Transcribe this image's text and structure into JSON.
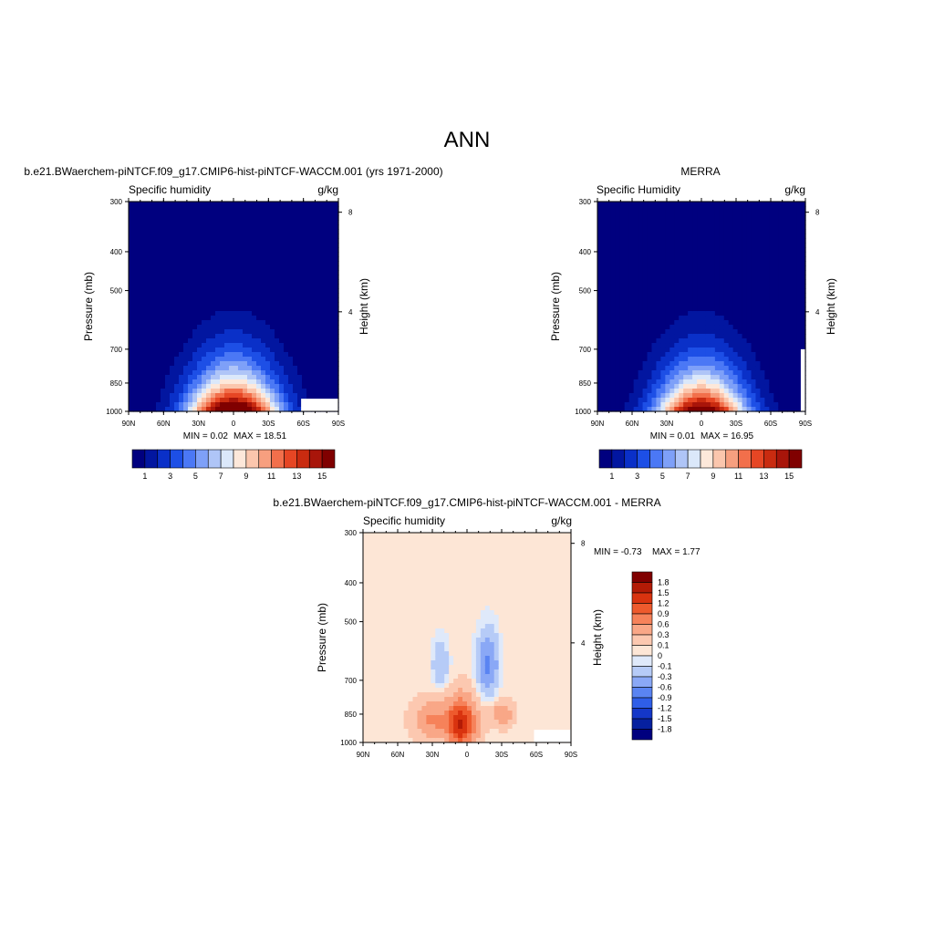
{
  "page": {
    "title": "ANN"
  },
  "chart_data": [
    {
      "type": "heatmap",
      "id": "model",
      "title": "b.e21.BWaerchem-piNTCF.f09_g17.CMIP6-hist-piNTCF-WACCM.001 (yrs 1971-2000)",
      "left_string": "Specific humidity",
      "right_string": "g/kg",
      "ylabel": "Pressure (mb)",
      "y2label": "Height (km)",
      "x_ticks": [
        "90N",
        "60N",
        "30N",
        "0",
        "30S",
        "60S",
        "90S"
      ],
      "y_ticks": [
        "300",
        "400",
        "500",
        "700",
        "850",
        "1000"
      ],
      "y2_ticks": [
        "8",
        "4"
      ],
      "x_range": [
        90,
        -90
      ],
      "y_range": [
        1000,
        300
      ],
      "y_scale": "log",
      "stats": {
        "min": "MIN =   0.02",
        "max": "MAX =  18.51"
      },
      "field": {
        "peak_lat": 0,
        "peak_value": 18.51,
        "min_value": 0.02,
        "note_shape": "max near equator at surface, decreasing poleward and upward"
      },
      "levels": [
        0,
        1,
        2,
        3,
        4,
        5,
        6,
        7,
        8,
        9,
        10,
        11,
        12,
        13,
        14,
        15,
        16
      ],
      "colorbar": {
        "orientation": "horizontal",
        "labels": [
          "1",
          "3",
          "5",
          "7",
          "9",
          "11",
          "13",
          "15"
        ],
        "colors": [
          "#00007f",
          "#0216a0",
          "#0a30c8",
          "#1d4fe6",
          "#4b78f5",
          "#7ea0f8",
          "#afc5f7",
          "#dbe8fa",
          "#fde8da",
          "#fbc6ad",
          "#f79f7f",
          "#f26f4b",
          "#e64624",
          "#c92b10",
          "#a8150a",
          "#800000"
        ]
      },
      "missing": "no data near 60S-90S below ~900 mb"
    },
    {
      "type": "heatmap",
      "id": "obs",
      "title": "MERRA",
      "left_string": "Specific Humidity",
      "right_string": "g/kg",
      "ylabel": "Pressure (mb)",
      "y2label": "Height (km)",
      "x_ticks": [
        "90N",
        "60N",
        "30N",
        "0",
        "30S",
        "60S",
        "90S"
      ],
      "y_ticks": [
        "300",
        "400",
        "500",
        "700",
        "850",
        "1000"
      ],
      "y2_ticks": [
        "8",
        "4"
      ],
      "x_range": [
        90,
        -90
      ],
      "y_range": [
        1000,
        300
      ],
      "y_scale": "log",
      "stats": {
        "min": "MIN =   0.01",
        "max": "MAX =  16.95"
      },
      "field": {
        "peak_lat": 0,
        "peak_value": 16.95,
        "min_value": 0.01
      },
      "levels": [
        0,
        1,
        2,
        3,
        4,
        5,
        6,
        7,
        8,
        9,
        10,
        11,
        12,
        13,
        14,
        15,
        16
      ],
      "colorbar": {
        "orientation": "horizontal",
        "labels": [
          "1",
          "3",
          "5",
          "7",
          "9",
          "11",
          "13",
          "15"
        ],
        "colors": [
          "#00007f",
          "#0216a0",
          "#0a30c8",
          "#1d4fe6",
          "#4b78f5",
          "#7ea0f8",
          "#afc5f7",
          "#dbe8fa",
          "#fde8da",
          "#fbc6ad",
          "#f79f7f",
          "#f26f4b",
          "#e64624",
          "#c92b10",
          "#a8150a",
          "#800000"
        ]
      },
      "missing": "no data near 90S below ~700 mb"
    },
    {
      "type": "heatmap",
      "id": "diff",
      "title": "b.e21.BWaerchem-piNTCF.f09_g17.CMIP6-hist-piNTCF-WACCM.001 - MERRA",
      "left_string": "Specific humidity",
      "right_string": "g/kg",
      "ylabel": "Pressure (mb)",
      "y2label": "Height (km)",
      "x_ticks": [
        "90N",
        "60N",
        "30N",
        "0",
        "30S",
        "60S",
        "90S"
      ],
      "y_ticks": [
        "300",
        "400",
        "500",
        "700",
        "850",
        "1000"
      ],
      "y2_ticks": [
        "8",
        "4"
      ],
      "x_range": [
        90,
        -90
      ],
      "y_range": [
        1000,
        300
      ],
      "y_scale": "log",
      "stats": {
        "min": "MIN =  -0.73",
        "max": "MAX =   1.77"
      },
      "field": {
        "positive_peak_lat": 5,
        "positive_peak_value": 1.77,
        "negative_peak_lat": -18,
        "negative_peak_value": -0.73
      },
      "levels": [
        -1.8,
        -1.5,
        -1.2,
        -0.9,
        -0.6,
        -0.3,
        -0.1,
        0,
        0.1,
        0.3,
        0.6,
        0.9,
        1.2,
        1.5,
        1.8
      ],
      "colorbar": {
        "orientation": "vertical",
        "labels": [
          "1.8",
          "1.5",
          "1.2",
          "0.9",
          "0.6",
          "0.3",
          "0.1",
          "0",
          "-0.1",
          "-0.3",
          "-0.6",
          "-0.9",
          "-1.2",
          "-1.5",
          "-1.8"
        ],
        "colors": [
          "#800000",
          "#b31b06",
          "#d9330f",
          "#ee5a2d",
          "#f6825a",
          "#f9a787",
          "#fcc8b0",
          "#fde6d6",
          "#dfe9fa",
          "#b6cbf7",
          "#8aa8f6",
          "#5a84f2",
          "#2f5ee8",
          "#1437c8",
          "#06209f",
          "#00007f"
        ]
      },
      "missing": "no data near 60S-90S below ~920 mb"
    }
  ]
}
